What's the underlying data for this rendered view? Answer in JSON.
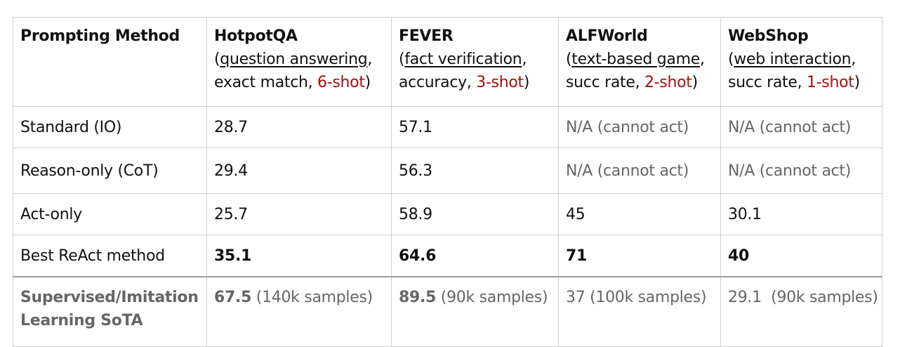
{
  "header": {
    "method": "Prompting Method",
    "columns": [
      {
        "name": "HotpotQA",
        "task": "question answering",
        "metric": "exact match, ",
        "shots": "6-shot"
      },
      {
        "name": "FEVER",
        "task": "fact verification",
        "metric": "accuracy, ",
        "shots": "3-shot"
      },
      {
        "name": "ALFWorld",
        "task": "text-based game",
        "metric": "succ rate, ",
        "shots": "2-shot"
      },
      {
        "name": "WebShop",
        "task": "web interaction",
        "metric": "succ rate, ",
        "shots": "1-shot"
      }
    ]
  },
  "rows": [
    {
      "method": "Standard (IO)",
      "values": [
        "28.7",
        "57.1",
        "N/A (cannot act)",
        "N/A (cannot act)"
      ]
    },
    {
      "method": "Reason-only (CoT)",
      "values": [
        "29.4",
        "56.3",
        "N/A (cannot act)",
        "N/A (cannot act)"
      ]
    },
    {
      "method": "Act-only",
      "values": [
        "25.7",
        "58.9",
        "45",
        "30.1"
      ]
    },
    {
      "method": "Best ReAct method",
      "values": [
        "35.1",
        "64.6",
        "71",
        "40"
      ]
    }
  ],
  "sota": {
    "method_line1": "Supervised/Imitation",
    "method_line2": "Learning SoTA",
    "values": [
      {
        "score": "67.5",
        "note": " (140k samples)"
      },
      {
        "score": "89.5",
        "note": " (90k samples)"
      },
      {
        "score": "",
        "note": "37 (100k samples)"
      },
      {
        "score": "",
        "note": "29.1  (90k samples)"
      }
    ]
  },
  "colors": {
    "shot_red": "#a01010",
    "sota_gray": "#666666",
    "border": "#cfcfcf"
  }
}
